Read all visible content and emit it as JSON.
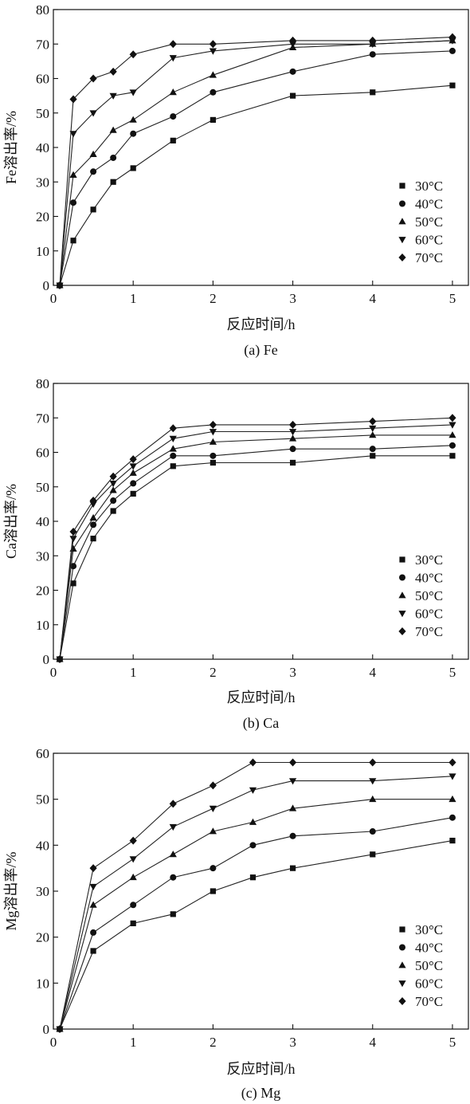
{
  "chart_data": [
    {
      "type": "line",
      "caption": "(a) Fe",
      "xlabel": "反应时间/h",
      "ylabel": "Fe溶出率/%",
      "xlim": [
        0,
        5.2
      ],
      "ylim": [
        0,
        80
      ],
      "xticks": [
        0,
        1,
        2,
        3,
        4,
        5
      ],
      "yticks": [
        10,
        20,
        30,
        40,
        50,
        60,
        70,
        80
      ],
      "legend_position": "bottom-right",
      "series": [
        {
          "name": "30°C",
          "marker": "square",
          "x": [
            0.08,
            0.25,
            0.5,
            0.75,
            1,
            1.5,
            2,
            3,
            4,
            5
          ],
          "y": [
            0,
            13,
            22,
            30,
            34,
            42,
            48,
            55,
            56,
            58
          ]
        },
        {
          "name": "40°C",
          "marker": "circle",
          "x": [
            0.08,
            0.25,
            0.5,
            0.75,
            1,
            1.5,
            2,
            3,
            4,
            5
          ],
          "y": [
            0,
            24,
            33,
            37,
            44,
            49,
            56,
            62,
            67,
            68
          ]
        },
        {
          "name": "50°C",
          "marker": "triangle-up",
          "x": [
            0.08,
            0.25,
            0.5,
            0.75,
            1,
            1.5,
            2,
            3,
            4,
            5
          ],
          "y": [
            0,
            32,
            38,
            45,
            48,
            56,
            61,
            69,
            70,
            71
          ]
        },
        {
          "name": "60°C",
          "marker": "triangle-down",
          "x": [
            0.08,
            0.25,
            0.5,
            0.75,
            1,
            1.5,
            2,
            3,
            4,
            5
          ],
          "y": [
            0,
            44,
            50,
            55,
            56,
            66,
            68,
            70,
            70,
            71
          ]
        },
        {
          "name": "70°C",
          "marker": "diamond",
          "x": [
            0.08,
            0.25,
            0.5,
            0.75,
            1,
            1.5,
            2,
            3,
            4,
            5
          ],
          "y": [
            0,
            54,
            60,
            62,
            67,
            70,
            70,
            71,
            71,
            72
          ]
        }
      ]
    },
    {
      "type": "line",
      "caption": "(b) Ca",
      "xlabel": "反应时间/h",
      "ylabel": "Ca溶出率/%",
      "xlim": [
        0,
        5.2
      ],
      "ylim": [
        0,
        80
      ],
      "xticks": [
        0,
        1,
        2,
        3,
        4,
        5
      ],
      "yticks": [
        10,
        20,
        30,
        40,
        50,
        60,
        70,
        80
      ],
      "legend_position": "bottom-right",
      "series": [
        {
          "name": "30°C",
          "marker": "square",
          "x": [
            0.08,
            0.25,
            0.5,
            0.75,
            1,
            1.5,
            2,
            3,
            4,
            5
          ],
          "y": [
            0,
            22,
            35,
            43,
            48,
            56,
            57,
            57,
            59,
            59
          ]
        },
        {
          "name": "40°C",
          "marker": "circle",
          "x": [
            0.08,
            0.25,
            0.5,
            0.75,
            1,
            1.5,
            2,
            3,
            4,
            5
          ],
          "y": [
            0,
            27,
            39,
            46,
            51,
            59,
            59,
            61,
            61,
            62
          ]
        },
        {
          "name": "50°C",
          "marker": "triangle-up",
          "x": [
            0.08,
            0.25,
            0.5,
            0.75,
            1,
            1.5,
            2,
            3,
            4,
            5
          ],
          "y": [
            0,
            32,
            41,
            49,
            54,
            61,
            63,
            64,
            65,
            65
          ]
        },
        {
          "name": "60°C",
          "marker": "triangle-down",
          "x": [
            0.08,
            0.25,
            0.5,
            0.75,
            1,
            1.5,
            2,
            3,
            4,
            5
          ],
          "y": [
            0,
            35,
            45,
            51,
            56,
            64,
            66,
            66,
            67,
            68
          ]
        },
        {
          "name": "70°C",
          "marker": "diamond",
          "x": [
            0.08,
            0.25,
            0.5,
            0.75,
            1,
            1.5,
            2,
            3,
            4,
            5
          ],
          "y": [
            0,
            37,
            46,
            53,
            58,
            67,
            68,
            68,
            69,
            70
          ]
        }
      ]
    },
    {
      "type": "line",
      "caption": "(c) Mg",
      "xlabel": "反应时间/h",
      "ylabel": "Mg溶出率/%",
      "xlim": [
        0,
        5.2
      ],
      "ylim": [
        0,
        60
      ],
      "xticks": [
        0,
        1,
        2,
        3,
        4,
        5
      ],
      "yticks": [
        10,
        20,
        30,
        40,
        50,
        60
      ],
      "legend_position": "bottom-right",
      "series": [
        {
          "name": "30°C",
          "marker": "square",
          "x": [
            0.08,
            0.5,
            1,
            1.5,
            2,
            2.5,
            3,
            4,
            5
          ],
          "y": [
            0,
            17,
            23,
            25,
            30,
            33,
            35,
            38,
            41
          ]
        },
        {
          "name": "40°C",
          "marker": "circle",
          "x": [
            0.08,
            0.5,
            1,
            1.5,
            2,
            2.5,
            3,
            4,
            5
          ],
          "y": [
            0,
            21,
            27,
            33,
            35,
            40,
            42,
            43,
            46
          ]
        },
        {
          "name": "50°C",
          "marker": "triangle-up",
          "x": [
            0.08,
            0.5,
            1,
            1.5,
            2,
            2.5,
            3,
            4,
            5
          ],
          "y": [
            0,
            27,
            33,
            38,
            43,
            45,
            48,
            50,
            50
          ]
        },
        {
          "name": "60°C",
          "marker": "triangle-down",
          "x": [
            0.08,
            0.5,
            1,
            1.5,
            2,
            2.5,
            3,
            4,
            5
          ],
          "y": [
            0,
            31,
            37,
            44,
            48,
            52,
            54,
            54,
            55
          ]
        },
        {
          "name": "70°C",
          "marker": "diamond",
          "x": [
            0.08,
            0.5,
            1,
            1.5,
            2,
            2.5,
            3,
            4,
            5
          ],
          "y": [
            0,
            35,
            41,
            49,
            53,
            58,
            58,
            58,
            58
          ]
        }
      ]
    }
  ]
}
